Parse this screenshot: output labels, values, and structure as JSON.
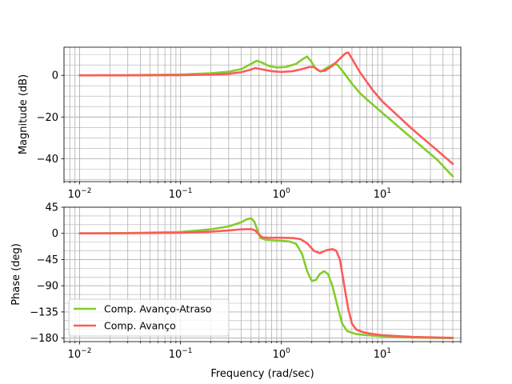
{
  "chart_data": {
    "type": "line",
    "xlabel": "Frequency (rad/sec)",
    "x_scale": "log",
    "xlim": [
      0.007,
      60
    ],
    "grid": true,
    "legend_location": "lower-left",
    "x_tick_labels": [
      {
        "value": 0.01,
        "base": "10",
        "exp": "−2"
      },
      {
        "value": 0.1,
        "base": "10",
        "exp": "−1"
      },
      {
        "value": 1,
        "base": "10",
        "exp": "0"
      },
      {
        "value": 10,
        "base": "10",
        "exp": "1"
      }
    ],
    "series_styles": [
      {
        "name": "Comp. Avanço-Atraso",
        "color": "#85cc2a"
      },
      {
        "name": "Comp. Avanço",
        "color": "#ff5a5a"
      }
    ],
    "plots": [
      {
        "id": "magnitude",
        "ylabel": "Magnitude (dB)",
        "ylim": [
          -51,
          13.5
        ],
        "y_ticks": [
          0,
          -20,
          -40
        ],
        "y_tick_labels": [
          "0",
          "−20",
          "−40"
        ],
        "series": [
          {
            "name": "Comp. Avanço-Atraso",
            "points": [
              [
                0.01,
                0
              ],
              [
                0.03,
                0.1
              ],
              [
                0.1,
                0.4
              ],
              [
                0.2,
                1
              ],
              [
                0.3,
                1.7
              ],
              [
                0.4,
                3
              ],
              [
                0.5,
                5.5
              ],
              [
                0.57,
                7
              ],
              [
                0.65,
                6
              ],
              [
                0.75,
                4.5
              ],
              [
                0.9,
                3.8
              ],
              [
                1.1,
                4
              ],
              [
                1.4,
                5.5
              ],
              [
                1.65,
                8
              ],
              [
                1.8,
                9
              ],
              [
                1.95,
                7
              ],
              [
                2.2,
                3
              ],
              [
                2.45,
                1.8
              ],
              [
                2.8,
                3.5
              ],
              [
                3.3,
                5.5
              ],
              [
                3.6,
                5
              ],
              [
                4.2,
                1
              ],
              [
                5,
                -4
              ],
              [
                6,
                -8.5
              ],
              [
                7,
                -11.5
              ],
              [
                10,
                -18
              ],
              [
                20,
                -30.5
              ],
              [
                35,
                -40.5
              ],
              [
                50,
                -48.5
              ]
            ]
          },
          {
            "name": "Comp. Avanço",
            "points": [
              [
                0.01,
                0
              ],
              [
                0.03,
                0
              ],
              [
                0.1,
                0.1
              ],
              [
                0.2,
                0.3
              ],
              [
                0.3,
                0.7
              ],
              [
                0.4,
                1.5
              ],
              [
                0.5,
                2.8
              ],
              [
                0.55,
                3.5
              ],
              [
                0.65,
                2.8
              ],
              [
                0.8,
                2
              ],
              [
                1,
                1.6
              ],
              [
                1.3,
                2
              ],
              [
                1.6,
                3
              ],
              [
                1.9,
                4
              ],
              [
                2.1,
                4
              ],
              [
                2.4,
                2
              ],
              [
                2.7,
                2.2
              ],
              [
                3.2,
                4.5
              ],
              [
                3.8,
                8
              ],
              [
                4.3,
                10.5
              ],
              [
                4.6,
                11
              ],
              [
                5,
                8
              ],
              [
                6,
                1.5
              ],
              [
                7,
                -3
              ],
              [
                8,
                -7
              ],
              [
                10,
                -12.5
              ],
              [
                20,
                -26
              ],
              [
                35,
                -36
              ],
              [
                50,
                -42.5
              ]
            ]
          }
        ]
      },
      {
        "id": "phase",
        "ylabel": "Phase (deg)",
        "ylim": [
          -186,
          45
        ],
        "y_ticks": [
          45,
          0,
          -45,
          -90,
          -135,
          -180
        ],
        "y_tick_labels": [
          "45",
          "0",
          "−45",
          "−90",
          "−135",
          "−180"
        ],
        "series": [
          {
            "name": "Comp. Avanço-Atraso",
            "points": [
              [
                0.01,
                0
              ],
              [
                0.03,
                0.5
              ],
              [
                0.1,
                2.5
              ],
              [
                0.2,
                7
              ],
              [
                0.3,
                12
              ],
              [
                0.4,
                19
              ],
              [
                0.45,
                24
              ],
              [
                0.5,
                26
              ],
              [
                0.54,
                20
              ],
              [
                0.58,
                5
              ],
              [
                0.62,
                -8
              ],
              [
                0.7,
                -11
              ],
              [
                0.85,
                -12
              ],
              [
                1,
                -12.5
              ],
              [
                1.2,
                -14
              ],
              [
                1.4,
                -18
              ],
              [
                1.6,
                -35
              ],
              [
                1.8,
                -65
              ],
              [
                2,
                -82
              ],
              [
                2.2,
                -80
              ],
              [
                2.4,
                -70
              ],
              [
                2.65,
                -65
              ],
              [
                2.9,
                -70
              ],
              [
                3.2,
                -90
              ],
              [
                3.6,
                -125
              ],
              [
                4,
                -155
              ],
              [
                4.5,
                -168
              ],
              [
                5.5,
                -173
              ],
              [
                7,
                -175
              ],
              [
                10,
                -177
              ],
              [
                20,
                -179
              ],
              [
                50,
                -180
              ]
            ]
          },
          {
            "name": "Comp. Avanço",
            "points": [
              [
                0.01,
                0
              ],
              [
                0.03,
                0.2
              ],
              [
                0.1,
                1
              ],
              [
                0.2,
                3
              ],
              [
                0.3,
                5
              ],
              [
                0.4,
                7
              ],
              [
                0.5,
                7.5
              ],
              [
                0.55,
                5
              ],
              [
                0.6,
                -2
              ],
              [
                0.65,
                -7
              ],
              [
                0.75,
                -7.5
              ],
              [
                1,
                -7.5
              ],
              [
                1.3,
                -8
              ],
              [
                1.55,
                -10
              ],
              [
                1.8,
                -17
              ],
              [
                2.1,
                -30
              ],
              [
                2.4,
                -34
              ],
              [
                2.8,
                -29
              ],
              [
                3.2,
                -27
              ],
              [
                3.5,
                -30
              ],
              [
                3.8,
                -45
              ],
              [
                4.2,
                -90
              ],
              [
                4.6,
                -130
              ],
              [
                5,
                -155
              ],
              [
                5.5,
                -165
              ],
              [
                6.5,
                -170
              ],
              [
                8,
                -173
              ],
              [
                10,
                -175
              ],
              [
                20,
                -178
              ],
              [
                50,
                -179.5
              ]
            ]
          }
        ]
      }
    ]
  }
}
